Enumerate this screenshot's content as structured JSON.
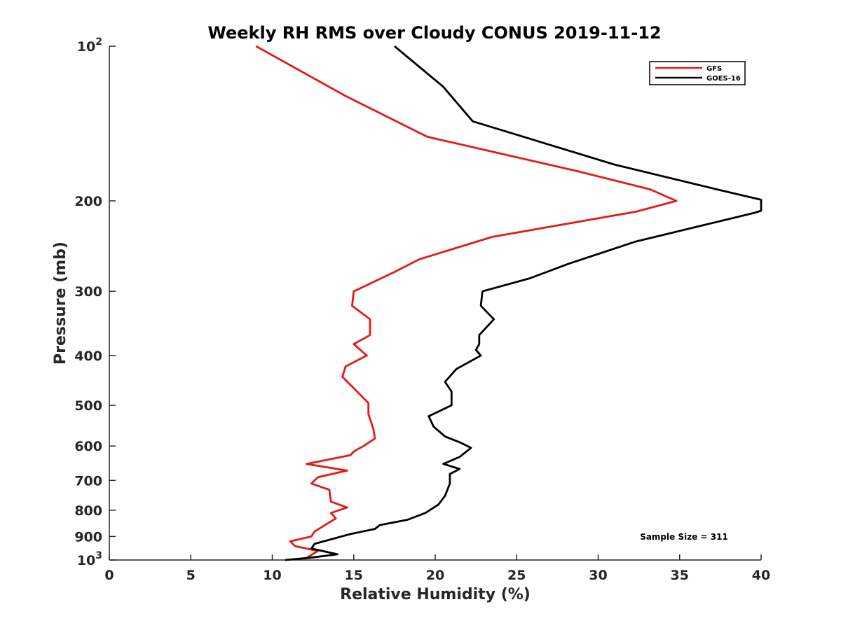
{
  "chart_data": {
    "type": "line",
    "title": "Weekly RH RMS over Cloudy CONUS 2019-11-12",
    "xlabel": "Relative Humidity (%)",
    "ylabel": "Pressure (mb)",
    "xlim": [
      0,
      40
    ],
    "ylim": [
      100,
      1000
    ],
    "y_scale": "log",
    "y_reversed": true,
    "grid": false,
    "legend_position": "top-right",
    "x_ticks": [
      0,
      5,
      10,
      15,
      20,
      25,
      30,
      35,
      40
    ],
    "y_ticks": [
      {
        "value": 100,
        "base": "10",
        "exp": "2"
      },
      {
        "value": 200,
        "label": "200"
      },
      {
        "value": 300,
        "label": "300"
      },
      {
        "value": 400,
        "label": "400"
      },
      {
        "value": 500,
        "label": "500"
      },
      {
        "value": 600,
        "label": "600"
      },
      {
        "value": 700,
        "label": "700"
      },
      {
        "value": 800,
        "label": "800"
      },
      {
        "value": 900,
        "label": "900"
      },
      {
        "value": 1000,
        "base": "10",
        "exp": "3"
      }
    ],
    "annotation": "Sample Size = 311",
    "series": [
      {
        "name": "GFS",
        "color": "#e31a1a",
        "points": [
          [
            9.0,
            100
          ],
          [
            14.5,
            125
          ],
          [
            19.5,
            150
          ],
          [
            28.7,
            175
          ],
          [
            33.2,
            190
          ],
          [
            34.8,
            200
          ],
          [
            32.3,
            210
          ],
          [
            23.5,
            235
          ],
          [
            19.0,
            260
          ],
          [
            17.5,
            275
          ],
          [
            15.0,
            300
          ],
          [
            14.9,
            320
          ],
          [
            16.0,
            340
          ],
          [
            16.0,
            365
          ],
          [
            15.0,
            380
          ],
          [
            15.8,
            400
          ],
          [
            14.5,
            420
          ],
          [
            14.3,
            440
          ],
          [
            15.2,
            470
          ],
          [
            15.9,
            495
          ],
          [
            15.9,
            520
          ],
          [
            16.2,
            555
          ],
          [
            16.3,
            580
          ],
          [
            15.6,
            600
          ],
          [
            15.0,
            615
          ],
          [
            14.8,
            625
          ],
          [
            12.1,
            650
          ],
          [
            14.6,
            670
          ],
          [
            12.8,
            690
          ],
          [
            12.4,
            710
          ],
          [
            13.5,
            730
          ],
          [
            13.6,
            770
          ],
          [
            14.6,
            790
          ],
          [
            13.6,
            810
          ],
          [
            13.9,
            830
          ],
          [
            12.6,
            880
          ],
          [
            12.4,
            900
          ],
          [
            11.1,
            920
          ],
          [
            11.4,
            940
          ],
          [
            12.8,
            960
          ],
          [
            11.9,
            1000
          ]
        ]
      },
      {
        "name": "GOES-16",
        "color": "#000000",
        "points": [
          [
            17.5,
            100
          ],
          [
            20.5,
            120
          ],
          [
            22.3,
            140
          ],
          [
            31.0,
            170
          ],
          [
            37.3,
            190
          ],
          [
            40.0,
            199
          ],
          [
            40.0,
            209
          ],
          [
            39.6,
            211
          ],
          [
            32.3,
            240
          ],
          [
            28.2,
            265
          ],
          [
            25.8,
            283
          ],
          [
            22.9,
            300
          ],
          [
            22.8,
            320
          ],
          [
            23.6,
            340
          ],
          [
            22.7,
            365
          ],
          [
            22.7,
            380
          ],
          [
            22.5,
            390
          ],
          [
            22.8,
            400
          ],
          [
            21.3,
            425
          ],
          [
            20.6,
            450
          ],
          [
            21.0,
            470
          ],
          [
            21.0,
            500
          ],
          [
            19.6,
            525
          ],
          [
            19.9,
            550
          ],
          [
            20.6,
            575
          ],
          [
            21.5,
            590
          ],
          [
            22.2,
            605
          ],
          [
            21.5,
            630
          ],
          [
            20.5,
            650
          ],
          [
            21.5,
            665
          ],
          [
            20.9,
            680
          ],
          [
            20.9,
            710
          ],
          [
            20.6,
            750
          ],
          [
            20.2,
            780
          ],
          [
            19.4,
            810
          ],
          [
            18.3,
            835
          ],
          [
            16.6,
            855
          ],
          [
            16.3,
            870
          ],
          [
            14.8,
            890
          ],
          [
            13.7,
            910
          ],
          [
            12.6,
            930
          ],
          [
            12.4,
            950
          ],
          [
            14.0,
            975
          ],
          [
            12.3,
            990
          ],
          [
            10.8,
            1000
          ]
        ]
      }
    ]
  }
}
